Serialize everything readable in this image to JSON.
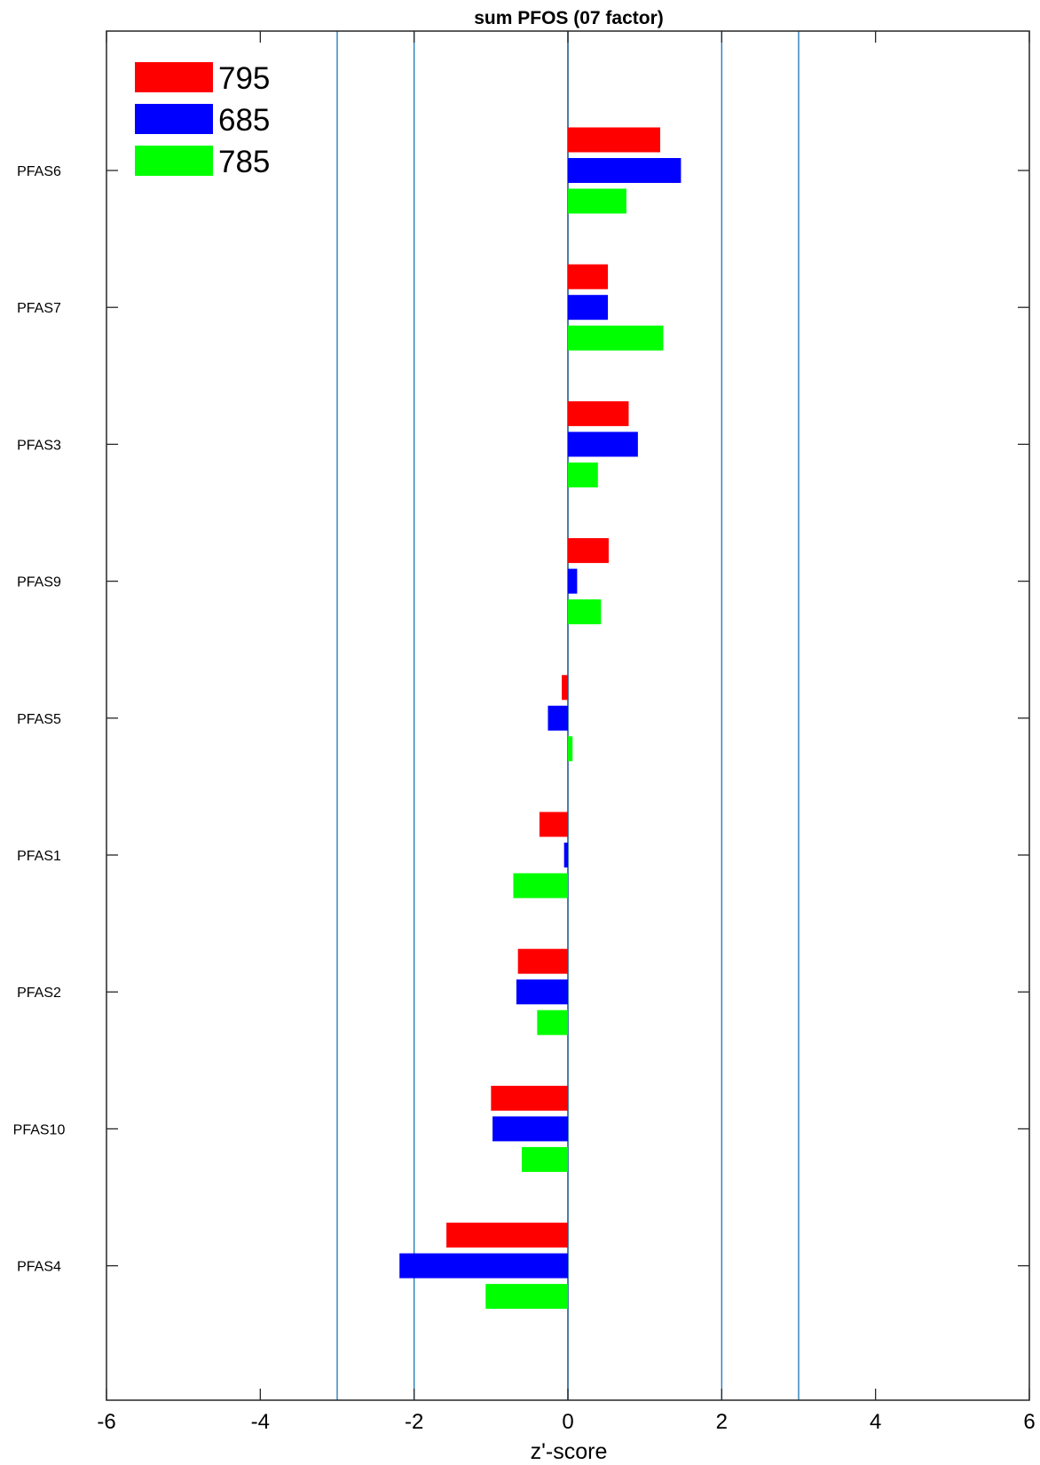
{
  "chart_data": {
    "type": "bar",
    "orientation": "horizontal",
    "title": "sum PFOS (07 factor)",
    "xlabel": "z'-score",
    "ylabel": "",
    "xlim": [
      -6,
      6
    ],
    "xticks": [
      -6,
      -4,
      -2,
      0,
      2,
      4,
      6
    ],
    "reference_lines": [
      -3,
      -2,
      2,
      3
    ],
    "categories": [
      "PFAS6",
      "PFAS7",
      "PFAS3",
      "PFAS9",
      "PFAS5",
      "PFAS1",
      "PFAS2",
      "PFAS10",
      "PFAS4"
    ],
    "series": [
      {
        "name": "795",
        "color": "#ff0000",
        "values": [
          1.2,
          0.52,
          0.79,
          0.53,
          -0.08,
          -0.37,
          -0.65,
          -1.0,
          -1.58
        ]
      },
      {
        "name": "685",
        "color": "#0000ff",
        "values": [
          1.47,
          0.52,
          0.91,
          0.12,
          -0.26,
          -0.05,
          -0.67,
          -0.98,
          -2.19
        ]
      },
      {
        "name": "785",
        "color": "#00ff00",
        "values": [
          0.76,
          1.24,
          0.39,
          0.43,
          0.06,
          -0.71,
          -0.4,
          -0.6,
          -1.07
        ]
      }
    ],
    "legend_position": "top-left",
    "grid": false
  }
}
